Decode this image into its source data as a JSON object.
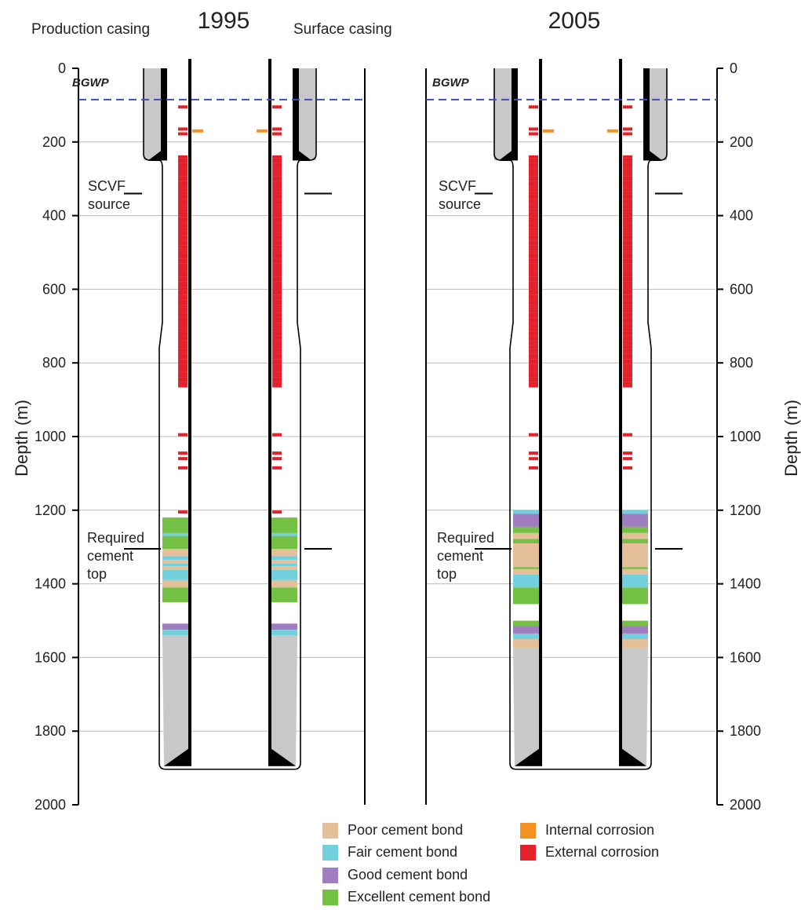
{
  "title_1995": "1995",
  "title_2005": "2005",
  "label_production_casing": "Production casing",
  "label_surface_casing": "Surface casing",
  "label_bgwp": "BGWP",
  "label_scvf": [
    "SCVF",
    "source"
  ],
  "label_required": [
    "Required",
    "cement",
    "top"
  ],
  "ylabel": "Depth (m)",
  "axis": {
    "min": 0,
    "max": 2000,
    "ticks": [
      0,
      200,
      400,
      600,
      800,
      1000,
      1200,
      1400,
      1600,
      1800,
      2000
    ]
  },
  "colors": {
    "poor": "#e4bf9a",
    "fair": "#72d0dc",
    "good": "#a07cc0",
    "excellent": "#74c044",
    "internal": "#f39221",
    "external": "#e2212b",
    "bgwp": "#3e4fb5",
    "grey": "#c8c8c8",
    "gridline": "#bbbbbb"
  },
  "depths": {
    "bgwp": 85,
    "surface_casing_shoe": 250,
    "scvf_source": 340,
    "required_cement_top": 1305,
    "production_casing_shoe": 1895
  },
  "legend": [
    {
      "key": "poor",
      "label": "Poor cement bond"
    },
    {
      "key": "fair",
      "label": "Fair cement bond"
    },
    {
      "key": "good",
      "label": "Good cement bond"
    },
    {
      "key": "excellent",
      "label": "Excellent cement bond"
    },
    {
      "key": "internal",
      "label": "Internal corrosion"
    },
    {
      "key": "external",
      "label": "External corrosion"
    }
  ],
  "logs": {
    "1995": {
      "internal_corrosion": [
        170
      ],
      "external_corrosion_isolated": [
        105,
        165,
        178,
        995,
        1045,
        1060,
        1085,
        1205
      ],
      "external_corrosion_dense": [
        240,
        865
      ],
      "cement": [
        {
          "from": 1220,
          "to": 1262,
          "bond": "excellent"
        },
        {
          "from": 1262,
          "to": 1270,
          "bond": "fair"
        },
        {
          "from": 1270,
          "to": 1305,
          "bond": "excellent"
        },
        {
          "from": 1305,
          "to": 1325,
          "bond": "poor"
        },
        {
          "from": 1325,
          "to": 1335,
          "bond": "fair"
        },
        {
          "from": 1335,
          "to": 1345,
          "bond": "poor"
        },
        {
          "from": 1345,
          "to": 1352,
          "bond": "fair"
        },
        {
          "from": 1352,
          "to": 1362,
          "bond": "poor"
        },
        {
          "from": 1362,
          "to": 1390,
          "bond": "fair"
        },
        {
          "from": 1390,
          "to": 1410,
          "bond": "poor"
        },
        {
          "from": 1410,
          "to": 1450,
          "bond": "excellent"
        },
        {
          "from": 1508,
          "to": 1525,
          "bond": "good"
        },
        {
          "from": 1525,
          "to": 1540,
          "bond": "fair"
        }
      ]
    },
    "2005": {
      "internal_corrosion": [
        170
      ],
      "external_corrosion_isolated": [
        105,
        165,
        178,
        995,
        1045,
        1060,
        1085
      ],
      "external_corrosion_dense": [
        240,
        865
      ],
      "cement": [
        {
          "from": 1200,
          "to": 1210,
          "bond": "fair"
        },
        {
          "from": 1210,
          "to": 1245,
          "bond": "good"
        },
        {
          "from": 1245,
          "to": 1262,
          "bond": "excellent"
        },
        {
          "from": 1262,
          "to": 1278,
          "bond": "poor"
        },
        {
          "from": 1278,
          "to": 1290,
          "bond": "excellent"
        },
        {
          "from": 1290,
          "to": 1355,
          "bond": "poor"
        },
        {
          "from": 1355,
          "to": 1360,
          "bond": "excellent"
        },
        {
          "from": 1360,
          "to": 1375,
          "bond": "poor"
        },
        {
          "from": 1375,
          "to": 1410,
          "bond": "fair"
        },
        {
          "from": 1410,
          "to": 1455,
          "bond": "excellent"
        },
        {
          "from": 1500,
          "to": 1515,
          "bond": "excellent"
        },
        {
          "from": 1515,
          "to": 1535,
          "bond": "good"
        },
        {
          "from": 1535,
          "to": 1550,
          "bond": "fair"
        },
        {
          "from": 1550,
          "to": 1575,
          "bond": "poor"
        }
      ]
    }
  }
}
